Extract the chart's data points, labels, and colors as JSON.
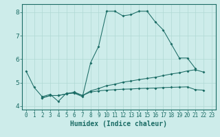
{
  "xlabel": "Humidex (Indice chaleur)",
  "xlim": [
    -0.5,
    23.5
  ],
  "ylim": [
    3.85,
    8.35
  ],
  "xticks": [
    0,
    1,
    2,
    3,
    4,
    5,
    6,
    7,
    8,
    9,
    10,
    11,
    12,
    13,
    14,
    15,
    16,
    17,
    18,
    19,
    20,
    21,
    22,
    23
  ],
  "yticks": [
    4,
    5,
    6,
    7,
    8
  ],
  "bg_color": "#cdecea",
  "grid_color": "#afd8d4",
  "line_color": "#1a6b64",
  "line1_x": [
    0,
    1,
    2,
    3,
    4,
    5,
    6,
    7,
    8,
    9,
    10,
    11,
    12,
    13,
    14,
    15,
    16,
    17,
    18,
    19,
    20,
    21
  ],
  "line1_y": [
    5.5,
    4.8,
    4.4,
    4.5,
    4.2,
    4.55,
    4.55,
    4.4,
    5.85,
    6.55,
    8.05,
    8.05,
    7.85,
    7.9,
    8.05,
    8.05,
    7.6,
    7.25,
    6.65,
    6.05,
    6.05,
    5.6
  ],
  "line2_x": [
    2,
    3,
    4,
    5,
    6,
    7,
    8,
    9,
    10,
    11,
    12,
    13,
    14,
    15,
    16,
    17,
    18,
    19,
    20,
    21,
    22
  ],
  "line2_y": [
    4.35,
    4.45,
    4.45,
    4.52,
    4.6,
    4.45,
    4.65,
    4.75,
    4.87,
    4.93,
    5.02,
    5.07,
    5.13,
    5.18,
    5.23,
    5.3,
    5.37,
    5.42,
    5.5,
    5.55,
    5.45
  ],
  "line3_x": [
    2,
    3,
    4,
    5,
    6,
    7,
    8,
    9,
    10,
    11,
    12,
    13,
    14,
    15,
    16,
    17,
    18,
    19,
    20,
    21,
    22
  ],
  "line3_y": [
    4.35,
    4.45,
    4.45,
    4.52,
    4.57,
    4.45,
    4.6,
    4.65,
    4.68,
    4.7,
    4.72,
    4.73,
    4.75,
    4.76,
    4.77,
    4.79,
    4.8,
    4.81,
    4.82,
    4.7,
    4.68
  ]
}
